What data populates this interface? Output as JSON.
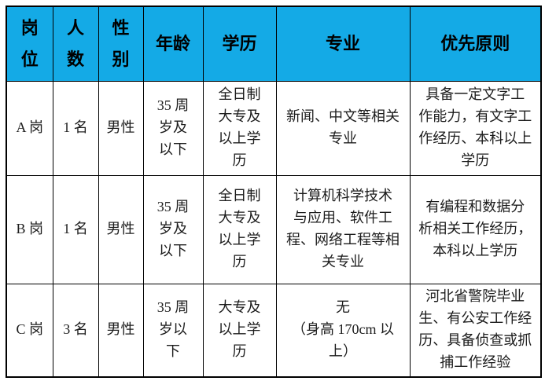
{
  "theme": {
    "header_bg": "#14AAE6",
    "border_color": "#000000",
    "header_text_color": "#000000",
    "body_text_color": "#1c1c1c",
    "page_bg": "#ffffff"
  },
  "table": {
    "headers": [
      "岗\n位",
      "人\n数",
      "性\n别",
      "年龄",
      "学历",
      "专业",
      "优先原则"
    ],
    "rows": [
      [
        "A 岗",
        "1 名",
        "男性",
        "35 周\n岁及\n以下",
        "全日制\n大专及\n以上学\n历",
        "新闻、中文等相关\n专业",
        "具备一定文字工\n作能力，有文字工\n作经历、本科以上\n学历"
      ],
      [
        "B 岗",
        "1 名",
        "男性",
        "35 周\n岁及\n以下",
        "全日制\n大专及\n以上学\n历",
        "计算机科学技术\n与应用、软件工\n程、网络工程等相\n关专业",
        "有编程和数据分\n析相关工作经历，\n本科以上学历"
      ],
      [
        "C 岗",
        "3 名",
        "男性",
        "35 周\n岁以\n下",
        "大专及\n以上学\n历",
        "无\n（身高 170cm 以\n上）",
        "河北省警院毕业\n生、有公安工作经\n历、具备侦查或抓\n捕工作经验"
      ]
    ]
  }
}
